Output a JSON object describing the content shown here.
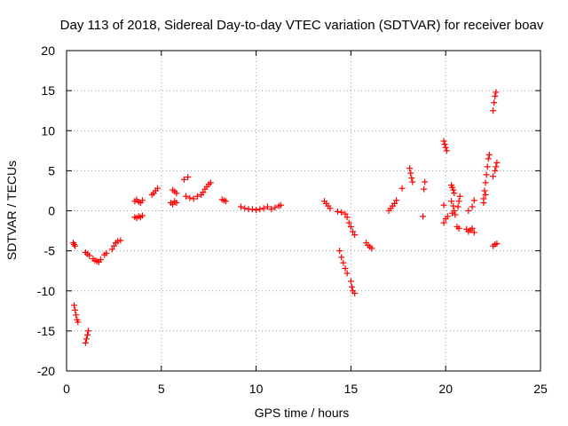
{
  "chart_data": {
    "type": "scatter",
    "title": "Day 113 of 2018, Sidereal Day-to-day VTEC variation (SDTVAR) for receiver boav",
    "xlabel": "GPS time / hours",
    "ylabel": "SDTVAR / TECUs",
    "xlim": [
      0,
      25
    ],
    "ylim": [
      -20,
      20
    ],
    "xticks": [
      0,
      5,
      10,
      15,
      20,
      25
    ],
    "yticks": [
      -20,
      -15,
      -10,
      -5,
      0,
      5,
      10,
      15,
      20
    ],
    "xtick_labels": [
      "0",
      "5",
      "10",
      "15",
      "20",
      "25"
    ],
    "ytick_labels": [
      "-20",
      "-15",
      "-10",
      "-5",
      "0",
      "5",
      "10",
      "15",
      "20"
    ],
    "grid": true,
    "marker": "plus",
    "color": "#ff0000",
    "series": [
      {
        "name": "SDTVAR",
        "points": [
          [
            0.35,
            -4.0
          ],
          [
            0.4,
            -4.2
          ],
          [
            0.45,
            -4.4
          ],
          [
            0.4,
            -11.8
          ],
          [
            0.45,
            -12.4
          ],
          [
            0.5,
            -13.0
          ],
          [
            0.55,
            -13.6
          ],
          [
            0.6,
            -13.9
          ],
          [
            1.0,
            -16.5
          ],
          [
            1.05,
            -16.0
          ],
          [
            1.1,
            -15.5
          ],
          [
            1.15,
            -15.0
          ],
          [
            1.0,
            -5.2
          ],
          [
            1.1,
            -5.4
          ],
          [
            1.2,
            -5.6
          ],
          [
            1.4,
            -6.0
          ],
          [
            1.5,
            -6.2
          ],
          [
            1.6,
            -6.3
          ],
          [
            1.7,
            -6.4
          ],
          [
            1.8,
            -6.1
          ],
          [
            2.0,
            -5.5
          ],
          [
            2.1,
            -5.3
          ],
          [
            2.4,
            -4.8
          ],
          [
            2.5,
            -4.4
          ],
          [
            2.6,
            -4.0
          ],
          [
            2.7,
            -3.8
          ],
          [
            2.85,
            -3.7
          ],
          [
            3.6,
            1.2
          ],
          [
            3.7,
            1.4
          ],
          [
            3.8,
            1.1
          ],
          [
            3.9,
            1.0
          ],
          [
            4.0,
            1.3
          ],
          [
            3.6,
            -0.8
          ],
          [
            3.7,
            -0.9
          ],
          [
            3.8,
            -0.7
          ],
          [
            3.9,
            -0.8
          ],
          [
            4.0,
            -0.6
          ],
          [
            4.5,
            2.0
          ],
          [
            4.6,
            2.2
          ],
          [
            4.7,
            2.5
          ],
          [
            4.8,
            2.8
          ],
          [
            5.6,
            2.6
          ],
          [
            5.7,
            2.4
          ],
          [
            5.8,
            2.2
          ],
          [
            5.5,
            1.0
          ],
          [
            5.6,
            0.8
          ],
          [
            5.7,
            1.2
          ],
          [
            5.8,
            1.0
          ],
          [
            6.2,
            3.9
          ],
          [
            6.4,
            4.2
          ],
          [
            6.3,
            1.8
          ],
          [
            6.5,
            1.6
          ],
          [
            6.7,
            1.5
          ],
          [
            6.9,
            1.8
          ],
          [
            7.1,
            2.0
          ],
          [
            7.2,
            2.3
          ],
          [
            7.3,
            2.7
          ],
          [
            7.4,
            3.0
          ],
          [
            7.5,
            3.3
          ],
          [
            7.6,
            3.5
          ],
          [
            8.2,
            1.4
          ],
          [
            8.3,
            1.3
          ],
          [
            8.4,
            1.2
          ],
          [
            9.2,
            0.5
          ],
          [
            9.4,
            0.3
          ],
          [
            9.6,
            0.2
          ],
          [
            9.8,
            0.2
          ],
          [
            10.0,
            0.1
          ],
          [
            10.2,
            0.2
          ],
          [
            10.4,
            0.3
          ],
          [
            10.6,
            0.5
          ],
          [
            10.8,
            0.2
          ],
          [
            11.0,
            0.4
          ],
          [
            11.2,
            0.6
          ],
          [
            11.3,
            0.7
          ],
          [
            13.6,
            1.2
          ],
          [
            13.7,
            0.9
          ],
          [
            13.8,
            0.6
          ],
          [
            13.9,
            0.3
          ],
          [
            14.3,
            -0.1
          ],
          [
            14.5,
            -0.2
          ],
          [
            14.7,
            -0.4
          ],
          [
            14.8,
            -0.8
          ],
          [
            14.4,
            -5.0
          ],
          [
            14.5,
            -5.8
          ],
          [
            14.6,
            -6.5
          ],
          [
            14.7,
            -7.2
          ],
          [
            14.8,
            -7.8
          ],
          [
            14.9,
            -1.5
          ],
          [
            15.0,
            -2.0
          ],
          [
            15.1,
            -2.6
          ],
          [
            15.2,
            -3.0
          ],
          [
            15.0,
            -8.8
          ],
          [
            15.05,
            -9.5
          ],
          [
            15.1,
            -10.0
          ],
          [
            15.2,
            -10.3
          ],
          [
            15.8,
            -4.0
          ],
          [
            15.9,
            -4.3
          ],
          [
            16.0,
            -4.5
          ],
          [
            16.1,
            -4.7
          ],
          [
            17.0,
            0.0
          ],
          [
            17.1,
            0.3
          ],
          [
            17.2,
            0.6
          ],
          [
            17.3,
            0.9
          ],
          [
            17.4,
            1.3
          ],
          [
            17.7,
            2.8
          ],
          [
            18.1,
            5.3
          ],
          [
            18.15,
            4.7
          ],
          [
            18.2,
            4.1
          ],
          [
            18.25,
            3.6
          ],
          [
            18.8,
            -0.7
          ],
          [
            18.85,
            2.7
          ],
          [
            18.9,
            3.6
          ],
          [
            19.9,
            8.7
          ],
          [
            19.95,
            8.3
          ],
          [
            20.0,
            7.9
          ],
          [
            20.05,
            7.5
          ],
          [
            19.9,
            -1.5
          ],
          [
            20.0,
            -1.0
          ],
          [
            20.1,
            -0.7
          ],
          [
            19.9,
            0.7
          ],
          [
            20.3,
            3.2
          ],
          [
            20.35,
            2.9
          ],
          [
            20.4,
            2.6
          ],
          [
            20.45,
            2.2
          ],
          [
            20.3,
            1.2
          ],
          [
            20.4,
            0.6
          ],
          [
            20.45,
            0.0
          ],
          [
            20.5,
            -0.5
          ],
          [
            20.35,
            -0.3
          ],
          [
            20.6,
            -2.0
          ],
          [
            20.7,
            -2.2
          ],
          [
            20.65,
            0.5
          ],
          [
            20.7,
            1.2
          ],
          [
            20.75,
            1.8
          ],
          [
            21.1,
            -2.3
          ],
          [
            21.2,
            -2.6
          ],
          [
            21.3,
            -2.4
          ],
          [
            21.4,
            -2.2
          ],
          [
            21.5,
            -2.7
          ],
          [
            21.2,
            0.0
          ],
          [
            21.4,
            0.5
          ],
          [
            21.5,
            1.3
          ],
          [
            22.0,
            1.5
          ],
          [
            22.05,
            2.5
          ],
          [
            22.1,
            3.5
          ],
          [
            22.15,
            4.5
          ],
          [
            22.2,
            5.5
          ],
          [
            22.25,
            6.5
          ],
          [
            22.3,
            7.0
          ],
          [
            22.0,
            1.0
          ],
          [
            22.1,
            2.0
          ],
          [
            22.5,
            12.5
          ],
          [
            22.55,
            13.5
          ],
          [
            22.6,
            14.3
          ],
          [
            22.65,
            14.8
          ],
          [
            22.5,
            4.3
          ],
          [
            22.6,
            5.0
          ],
          [
            22.65,
            5.5
          ],
          [
            22.7,
            6.0
          ],
          [
            22.5,
            -4.4
          ],
          [
            22.6,
            -4.2
          ],
          [
            22.7,
            -4.1
          ]
        ]
      }
    ]
  }
}
